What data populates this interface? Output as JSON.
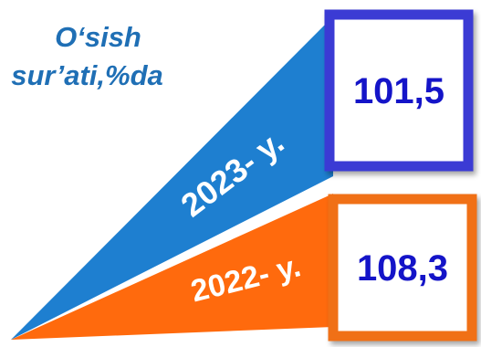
{
  "title": {
    "line1": "O‘sish",
    "line2": "sur’ati,%da"
  },
  "chart_data": {
    "type": "bar",
    "title": "O‘sish sur’ati,%da",
    "categories": [
      "2023- y.",
      "2022- y."
    ],
    "values": [
      101.5,
      108.3
    ],
    "value_labels": [
      "101,5",
      "108,3"
    ],
    "series_colors": [
      "#1e7fd0",
      "#ff6a0d"
    ],
    "box_colors": [
      "#3b3bd4",
      "#f07018"
    ],
    "value_text_color": "#1414c8"
  }
}
